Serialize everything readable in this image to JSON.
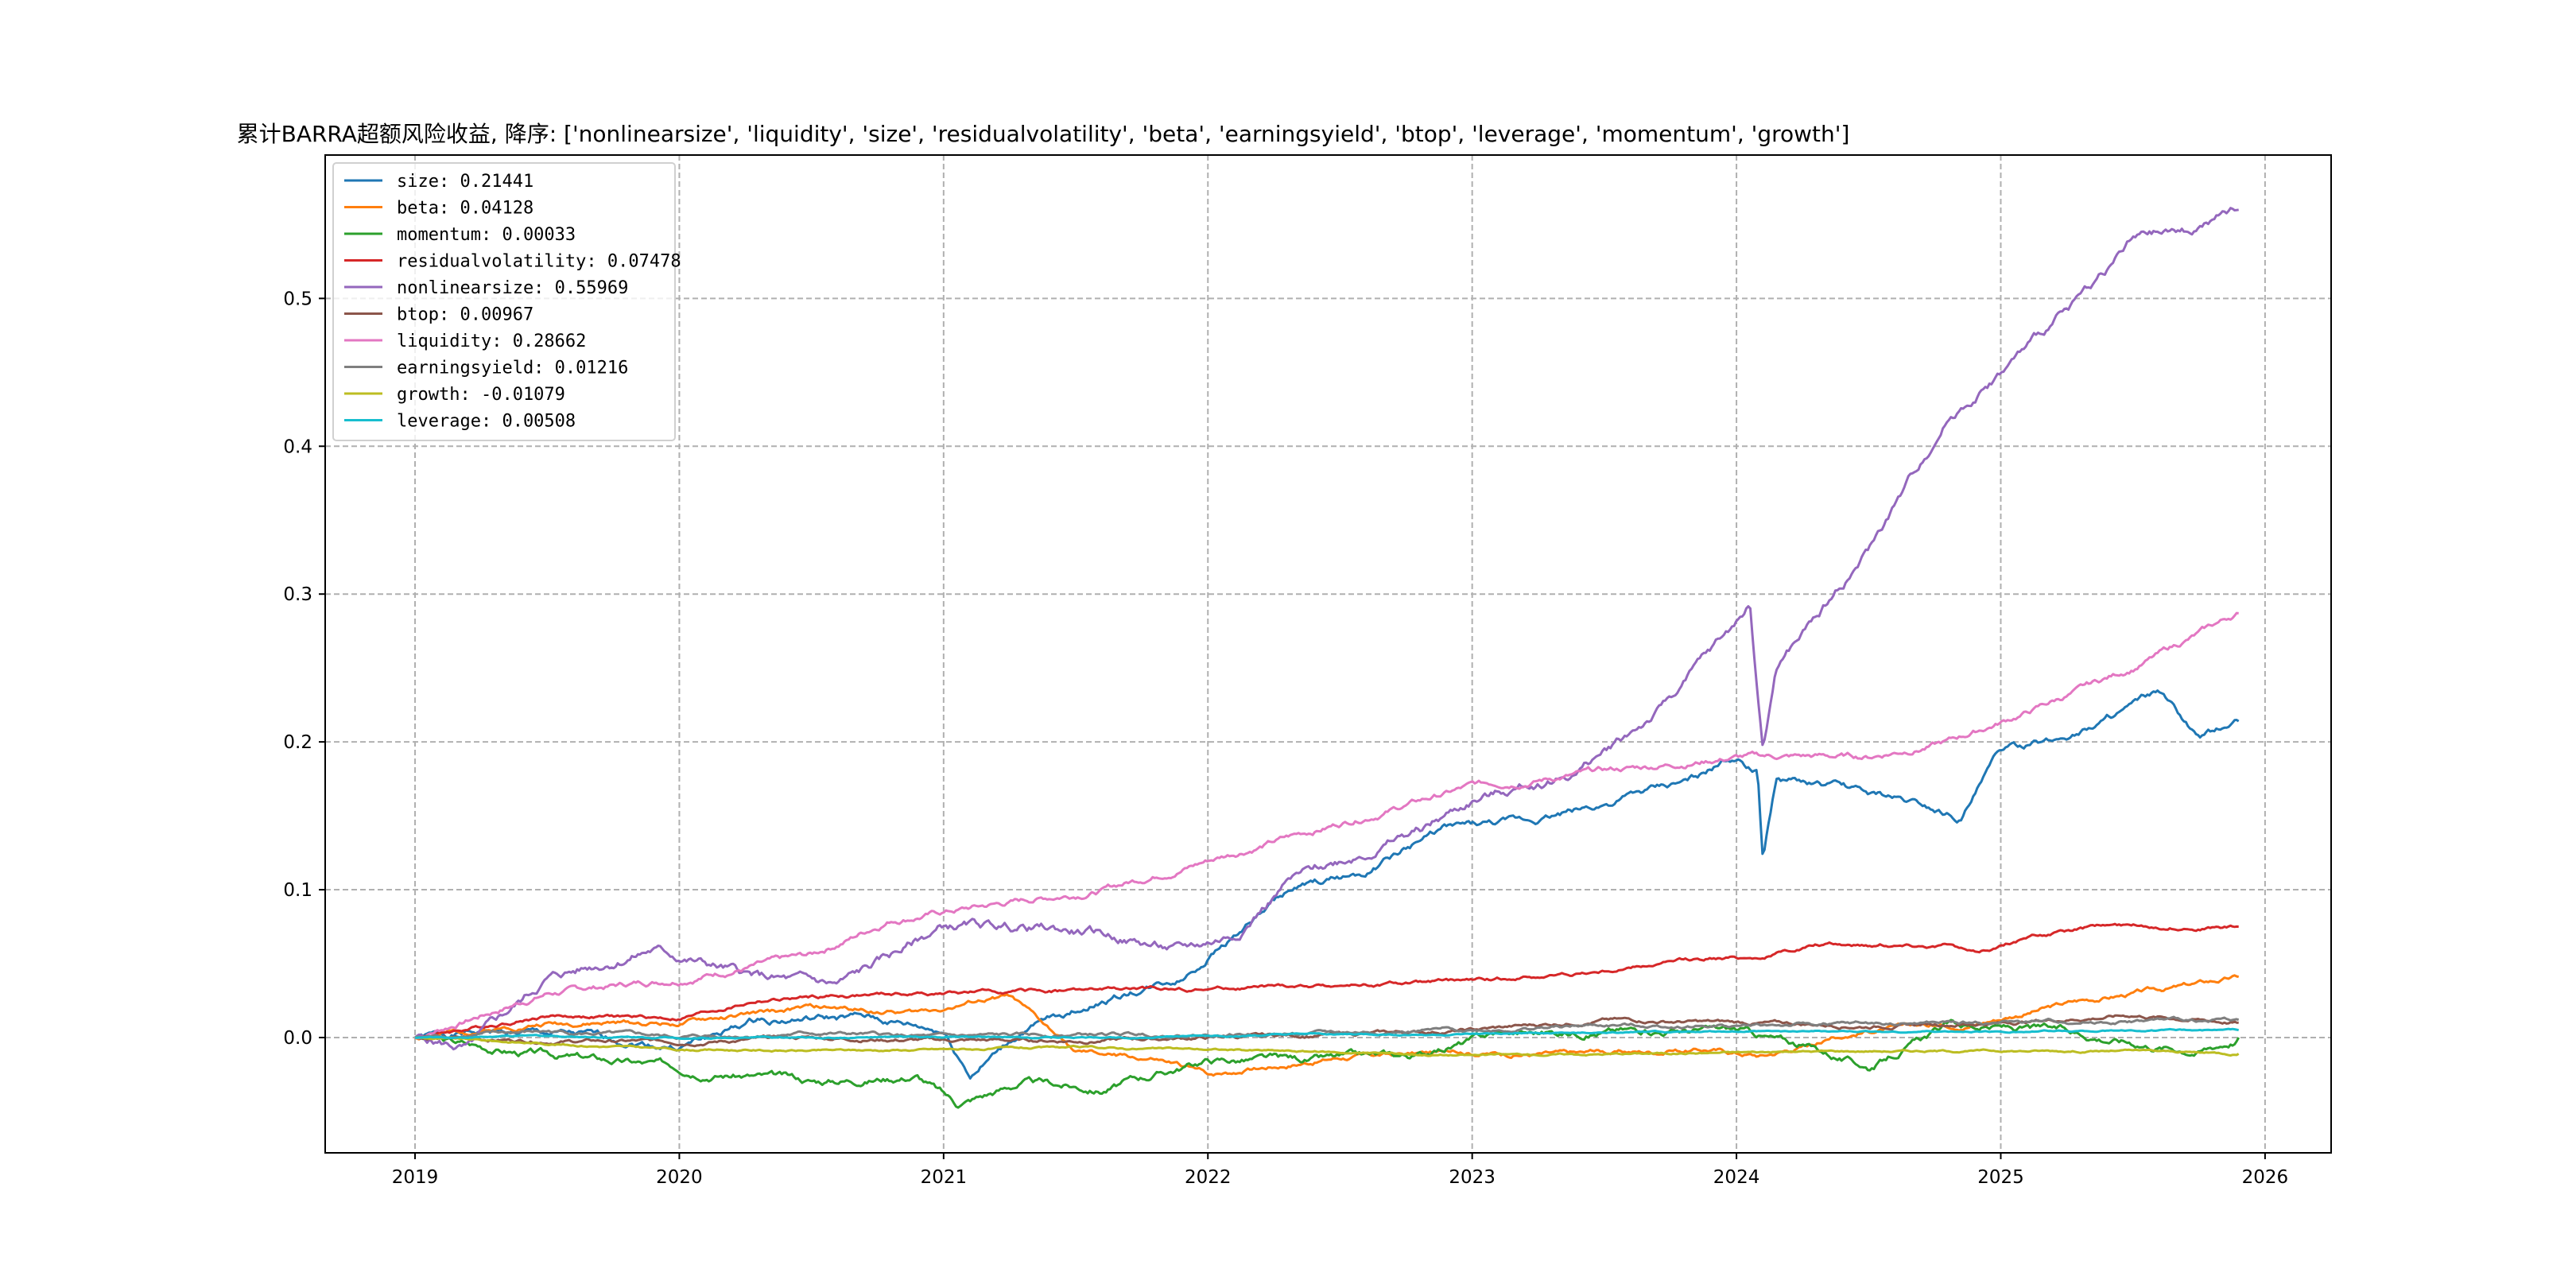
{
  "chart_data": {
    "type": "line",
    "title": "累计BARRA超额风险收益,  降序: ['nonlinearsize', 'liquidity', 'size', 'residualvolatility', 'beta', 'earningsyield', 'btop', 'leverage', 'momentum', 'growth']",
    "xlabel": "",
    "ylabel": "",
    "xlim": [
      2018.66,
      2026.25
    ],
    "ylim": [
      -0.078,
      0.597
    ],
    "x_ticks": [
      2019,
      2020,
      2021,
      2022,
      2023,
      2024,
      2025,
      2026
    ],
    "x_tick_labels": [
      "2019",
      "2020",
      "2021",
      "2022",
      "2023",
      "2024",
      "2025",
      "2026"
    ],
    "y_ticks": [
      0.0,
      0.1,
      0.2,
      0.3,
      0.4,
      0.5
    ],
    "y_tick_labels": [
      "0.0",
      "0.1",
      "0.2",
      "0.3",
      "0.4",
      "0.5"
    ],
    "grid": true,
    "legend_position": "top-left",
    "series": [
      {
        "name": "size",
        "legend_label": "size: 0.21441",
        "color": "#1f77b4",
        "noise": 0.003,
        "seed": 1,
        "points": [
          [
            2019.0,
            0.0
          ],
          [
            2019.3,
            0.004
          ],
          [
            2019.6,
            0.001
          ],
          [
            2020.0,
            -0.006
          ],
          [
            2020.3,
            0.012
          ],
          [
            2020.7,
            0.013
          ],
          [
            2021.0,
            0.004
          ],
          [
            2021.1,
            -0.025
          ],
          [
            2021.3,
            0.004
          ],
          [
            2021.6,
            0.025
          ],
          [
            2021.9,
            0.04
          ],
          [
            2022.1,
            0.07
          ],
          [
            2022.3,
            0.098
          ],
          [
            2022.6,
            0.112
          ],
          [
            2022.9,
            0.142
          ],
          [
            2023.2,
            0.145
          ],
          [
            2023.5,
            0.158
          ],
          [
            2023.8,
            0.172
          ],
          [
            2024.0,
            0.19
          ],
          [
            2024.08,
            0.18
          ],
          [
            2024.1,
            0.12
          ],
          [
            2024.15,
            0.175
          ],
          [
            2024.4,
            0.168
          ],
          [
            2024.7,
            0.158
          ],
          [
            2024.85,
            0.15
          ],
          [
            2025.0,
            0.195
          ],
          [
            2025.2,
            0.2
          ],
          [
            2025.6,
            0.232
          ],
          [
            2025.75,
            0.2
          ],
          [
            2025.9,
            0.214
          ]
        ]
      },
      {
        "name": "beta",
        "legend_label": "beta: 0.04128",
        "color": "#ff7f0e",
        "noise": 0.002,
        "seed": 2,
        "points": [
          [
            2019.0,
            0.0
          ],
          [
            2019.5,
            0.01
          ],
          [
            2020.0,
            0.01
          ],
          [
            2020.5,
            0.02
          ],
          [
            2020.9,
            0.017
          ],
          [
            2021.25,
            0.028
          ],
          [
            2021.5,
            -0.01
          ],
          [
            2021.8,
            -0.015
          ],
          [
            2022.0,
            -0.025
          ],
          [
            2022.5,
            -0.013
          ],
          [
            2022.9,
            -0.01
          ],
          [
            2023.4,
            -0.011
          ],
          [
            2023.9,
            -0.008
          ],
          [
            2024.1,
            -0.012
          ],
          [
            2024.5,
            0.005
          ],
          [
            2024.9,
            0.01
          ],
          [
            2025.3,
            0.025
          ],
          [
            2025.7,
            0.035
          ],
          [
            2025.9,
            0.041
          ]
        ]
      },
      {
        "name": "momentum",
        "legend_label": "momentum: 0.00033",
        "color": "#2ca02c",
        "noise": 0.003,
        "seed": 3,
        "points": [
          [
            2019.0,
            0.0
          ],
          [
            2019.4,
            -0.01
          ],
          [
            2020.0,
            -0.02
          ],
          [
            2020.5,
            -0.03
          ],
          [
            2020.9,
            -0.025
          ],
          [
            2021.05,
            -0.045
          ],
          [
            2021.3,
            -0.03
          ],
          [
            2021.6,
            -0.035
          ],
          [
            2022.0,
            -0.015
          ],
          [
            2022.4,
            -0.015
          ],
          [
            2022.8,
            -0.012
          ],
          [
            2023.1,
            0.003
          ],
          [
            2023.6,
            0.005
          ],
          [
            2024.0,
            0.005
          ],
          [
            2024.3,
            -0.008
          ],
          [
            2024.5,
            -0.02
          ],
          [
            2024.8,
            0.008
          ],
          [
            2025.2,
            0.005
          ],
          [
            2025.6,
            -0.005
          ],
          [
            2025.75,
            -0.008
          ],
          [
            2025.9,
            0.0
          ]
        ]
      },
      {
        "name": "residualvolatility",
        "legend_label": "residualvolatility: 0.07478",
        "color": "#d62728",
        "noise": 0.0015,
        "seed": 4,
        "points": [
          [
            2019.0,
            0.0
          ],
          [
            2019.5,
            0.015
          ],
          [
            2020.0,
            0.013
          ],
          [
            2020.3,
            0.025
          ],
          [
            2020.6,
            0.028
          ],
          [
            2021.0,
            0.03
          ],
          [
            2021.5,
            0.032
          ],
          [
            2022.0,
            0.033
          ],
          [
            2022.5,
            0.035
          ],
          [
            2023.0,
            0.038
          ],
          [
            2023.5,
            0.045
          ],
          [
            2023.8,
            0.052
          ],
          [
            2024.1,
            0.055
          ],
          [
            2024.3,
            0.063
          ],
          [
            2024.8,
            0.063
          ],
          [
            2024.9,
            0.057
          ],
          [
            2025.1,
            0.068
          ],
          [
            2025.4,
            0.076
          ],
          [
            2025.9,
            0.075
          ]
        ]
      },
      {
        "name": "nonlinearsize",
        "legend_label": "nonlinearsize: 0.55969",
        "color": "#9467bd",
        "noise": 0.004,
        "seed": 5,
        "points": [
          [
            2019.0,
            0.0
          ],
          [
            2019.2,
            -0.008
          ],
          [
            2019.5,
            0.04
          ],
          [
            2019.9,
            0.06
          ],
          [
            2020.1,
            0.05
          ],
          [
            2020.3,
            0.04
          ],
          [
            2020.6,
            0.035
          ],
          [
            2020.8,
            0.055
          ],
          [
            2021.0,
            0.075
          ],
          [
            2021.3,
            0.075
          ],
          [
            2021.6,
            0.07
          ],
          [
            2021.9,
            0.058
          ],
          [
            2022.1,
            0.07
          ],
          [
            2022.3,
            0.105
          ],
          [
            2022.5,
            0.12
          ],
          [
            2022.8,
            0.14
          ],
          [
            2023.0,
            0.16
          ],
          [
            2023.4,
            0.18
          ],
          [
            2023.7,
            0.22
          ],
          [
            2024.0,
            0.28
          ],
          [
            2024.05,
            0.295
          ],
          [
            2024.1,
            0.195
          ],
          [
            2024.15,
            0.25
          ],
          [
            2024.5,
            0.33
          ],
          [
            2024.8,
            0.42
          ],
          [
            2025.0,
            0.45
          ],
          [
            2025.3,
            0.5
          ],
          [
            2025.5,
            0.54
          ],
          [
            2025.7,
            0.545
          ],
          [
            2025.9,
            0.56
          ]
        ]
      },
      {
        "name": "btop",
        "legend_label": "btop: 0.00967",
        "color": "#8c564b",
        "noise": 0.0015,
        "seed": 6,
        "points": [
          [
            2019.0,
            0.0
          ],
          [
            2019.5,
            -0.002
          ],
          [
            2020.0,
            -0.003
          ],
          [
            2020.5,
            0.0
          ],
          [
            2021.0,
            -0.002
          ],
          [
            2021.5,
            -0.002
          ],
          [
            2022.0,
            0.0
          ],
          [
            2022.5,
            0.002
          ],
          [
            2023.0,
            0.005
          ],
          [
            2023.5,
            0.012
          ],
          [
            2024.0,
            0.01
          ],
          [
            2024.5,
            0.008
          ],
          [
            2025.0,
            0.01
          ],
          [
            2025.5,
            0.015
          ],
          [
            2025.9,
            0.01
          ]
        ]
      },
      {
        "name": "liquidity",
        "legend_label": "liquidity: 0.28662",
        "color": "#e377c2",
        "noise": 0.0025,
        "seed": 7,
        "points": [
          [
            2019.0,
            0.0
          ],
          [
            2019.5,
            0.03
          ],
          [
            2020.0,
            0.04
          ],
          [
            2020.5,
            0.055
          ],
          [
            2020.8,
            0.08
          ],
          [
            2021.2,
            0.09
          ],
          [
            2021.6,
            0.1
          ],
          [
            2022.0,
            0.12
          ],
          [
            2022.5,
            0.145
          ],
          [
            2023.0,
            0.17
          ],
          [
            2023.5,
            0.18
          ],
          [
            2024.0,
            0.19
          ],
          [
            2024.5,
            0.19
          ],
          [
            2024.8,
            0.2
          ],
          [
            2025.1,
            0.22
          ],
          [
            2025.5,
            0.25
          ],
          [
            2025.9,
            0.287
          ]
        ]
      },
      {
        "name": "earningsyield",
        "legend_label": "earningsyield: 0.01216",
        "color": "#7f7f7f",
        "noise": 0.0015,
        "seed": 8,
        "points": [
          [
            2019.0,
            0.0
          ],
          [
            2019.5,
            0.004
          ],
          [
            2020.0,
            0.0
          ],
          [
            2020.5,
            0.003
          ],
          [
            2021.0,
            0.0
          ],
          [
            2021.5,
            0.002
          ],
          [
            2022.0,
            0.002
          ],
          [
            2022.5,
            0.003
          ],
          [
            2023.0,
            0.005
          ],
          [
            2023.5,
            0.008
          ],
          [
            2024.0,
            0.008
          ],
          [
            2024.5,
            0.009
          ],
          [
            2025.0,
            0.01
          ],
          [
            2025.5,
            0.011
          ],
          [
            2025.9,
            0.012
          ]
        ]
      },
      {
        "name": "growth",
        "legend_label": "growth: -0.01079",
        "color": "#bcbd22",
        "noise": 0.0008,
        "seed": 9,
        "points": [
          [
            2019.0,
            0.0
          ],
          [
            2019.5,
            -0.004
          ],
          [
            2020.0,
            -0.008
          ],
          [
            2020.5,
            -0.009
          ],
          [
            2021.0,
            -0.008
          ],
          [
            2021.5,
            -0.007
          ],
          [
            2022.0,
            -0.008
          ],
          [
            2022.5,
            -0.01
          ],
          [
            2023.0,
            -0.012
          ],
          [
            2023.5,
            -0.011
          ],
          [
            2024.0,
            -0.01
          ],
          [
            2024.5,
            -0.009
          ],
          [
            2025.0,
            -0.009
          ],
          [
            2025.5,
            -0.009
          ],
          [
            2025.9,
            -0.011
          ]
        ]
      },
      {
        "name": "leverage",
        "legend_label": "leverage: 0.00508",
        "color": "#17becf",
        "noise": 0.0006,
        "seed": 10,
        "points": [
          [
            2019.0,
            0.0
          ],
          [
            2019.5,
            0.001
          ],
          [
            2020.0,
            0.0
          ],
          [
            2020.5,
            0.0
          ],
          [
            2021.0,
            0.0
          ],
          [
            2021.5,
            0.0
          ],
          [
            2022.0,
            0.001
          ],
          [
            2022.5,
            0.002
          ],
          [
            2023.0,
            0.002
          ],
          [
            2023.5,
            0.003
          ],
          [
            2024.0,
            0.004
          ],
          [
            2024.5,
            0.004
          ],
          [
            2025.0,
            0.004
          ],
          [
            2025.5,
            0.005
          ],
          [
            2025.9,
            0.005
          ]
        ]
      }
    ]
  }
}
